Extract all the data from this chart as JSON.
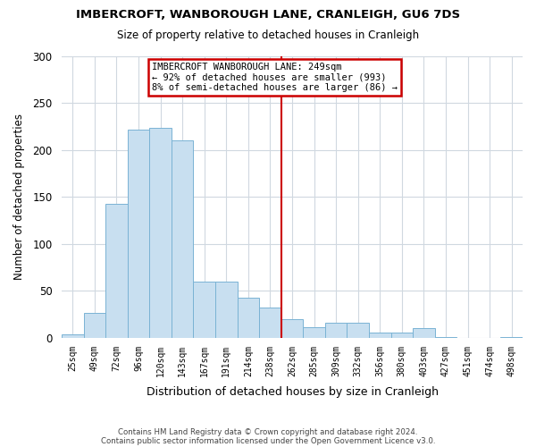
{
  "title": "IMBERCROFT, WANBOROUGH LANE, CRANLEIGH, GU6 7DS",
  "subtitle": "Size of property relative to detached houses in Cranleigh",
  "xlabel": "Distribution of detached houses by size in Cranleigh",
  "ylabel": "Number of detached properties",
  "footnote1": "Contains HM Land Registry data © Crown copyright and database right 2024.",
  "footnote2": "Contains public sector information licensed under the Open Government Licence v3.0.",
  "bin_labels": [
    "25sqm",
    "49sqm",
    "72sqm",
    "96sqm",
    "120sqm",
    "143sqm",
    "167sqm",
    "191sqm",
    "214sqm",
    "238sqm",
    "262sqm",
    "285sqm",
    "309sqm",
    "332sqm",
    "356sqm",
    "380sqm",
    "403sqm",
    "427sqm",
    "451sqm",
    "474sqm",
    "498sqm"
  ],
  "bar_values": [
    4,
    27,
    143,
    222,
    223,
    210,
    60,
    60,
    43,
    32,
    20,
    11,
    16,
    16,
    6,
    6,
    10,
    1,
    0,
    0,
    1
  ],
  "bar_color": "#c8dff0",
  "bar_edge_color": "#7ab3d4",
  "vline_x": 9.5,
  "vline_color": "#cc0000",
  "annotation_title": "IMBERCROFT WANBOROUGH LANE: 249sqm",
  "annotation_line1": "← 92% of detached houses are smaller (993)",
  "annotation_line2": "8% of semi-detached houses are larger (86) →",
  "annotation_box_color": "white",
  "annotation_box_edge": "#cc0000",
  "ylim": [
    0,
    300
  ],
  "yticks": [
    0,
    50,
    100,
    150,
    200,
    250,
    300
  ],
  "background_color": "#ffffff",
  "grid_color": "#d0d8e0"
}
